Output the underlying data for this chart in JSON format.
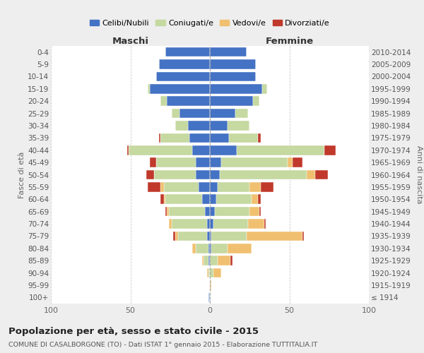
{
  "age_groups": [
    "0-4",
    "5-9",
    "10-14",
    "15-19",
    "20-24",
    "25-29",
    "30-34",
    "35-39",
    "40-44",
    "45-49",
    "50-54",
    "55-59",
    "60-64",
    "65-69",
    "70-74",
    "75-79",
    "80-84",
    "85-89",
    "90-94",
    "95-99",
    "100+"
  ],
  "birth_years": [
    "2010-2014",
    "2005-2009",
    "2000-2004",
    "1995-1999",
    "1990-1994",
    "1985-1989",
    "1980-1984",
    "1975-1979",
    "1970-1974",
    "1965-1969",
    "1960-1964",
    "1955-1959",
    "1950-1954",
    "1945-1949",
    "1940-1944",
    "1935-1939",
    "1930-1934",
    "1925-1929",
    "1920-1924",
    "1915-1919",
    "≤ 1914"
  ],
  "males": {
    "celibi": [
      28,
      32,
      34,
      38,
      27,
      19,
      14,
      13,
      11,
      9,
      9,
      7,
      5,
      3,
      2,
      2,
      1,
      1,
      0,
      0,
      1
    ],
    "coniugati": [
      0,
      0,
      0,
      1,
      4,
      5,
      8,
      18,
      40,
      25,
      26,
      22,
      23,
      23,
      22,
      18,
      8,
      3,
      1,
      0,
      0
    ],
    "vedovi": [
      0,
      0,
      0,
      0,
      0,
      0,
      0,
      0,
      0,
      0,
      0,
      2,
      1,
      1,
      2,
      2,
      2,
      1,
      1,
      0,
      0
    ],
    "divorziati": [
      0,
      0,
      0,
      0,
      0,
      0,
      0,
      1,
      1,
      4,
      5,
      8,
      2,
      1,
      0,
      1,
      0,
      0,
      0,
      0,
      0
    ]
  },
  "females": {
    "nubili": [
      23,
      29,
      29,
      33,
      27,
      16,
      11,
      12,
      17,
      7,
      6,
      5,
      4,
      3,
      2,
      1,
      1,
      0,
      0,
      0,
      0
    ],
    "coniugate": [
      0,
      0,
      0,
      3,
      4,
      8,
      14,
      18,
      55,
      42,
      55,
      20,
      22,
      22,
      22,
      22,
      10,
      5,
      2,
      0,
      0
    ],
    "vedove": [
      0,
      0,
      0,
      0,
      0,
      0,
      0,
      0,
      0,
      3,
      5,
      7,
      4,
      6,
      10,
      35,
      15,
      8,
      5,
      1,
      0
    ],
    "divorziate": [
      0,
      0,
      0,
      0,
      0,
      0,
      0,
      2,
      7,
      6,
      8,
      8,
      2,
      1,
      1,
      1,
      0,
      1,
      0,
      0,
      0
    ]
  },
  "colors": {
    "celibi_nubili": "#4472c4",
    "coniugati": "#c5d9a0",
    "vedovi": "#f0c070",
    "divorziati": "#c0392b"
  },
  "xlim": [
    -100,
    100
  ],
  "title": "Popolazione per età, sesso e stato civile - 2015",
  "subtitle": "COMUNE DI CASALBORGONE (TO) - Dati ISTAT 1° gennaio 2015 - Elaborazione TUTTITALIA.IT",
  "xlabel_left": "Maschi",
  "xlabel_right": "Femmine",
  "ylabel_left": "Fasce di età",
  "ylabel_right": "Anni di nascita",
  "bg_color": "#eeeeee",
  "plot_bg": "#ffffff",
  "legend_labels": [
    "Celibi/Nubili",
    "Coniugati/e",
    "Vedovi/e",
    "Divorziati/e"
  ]
}
